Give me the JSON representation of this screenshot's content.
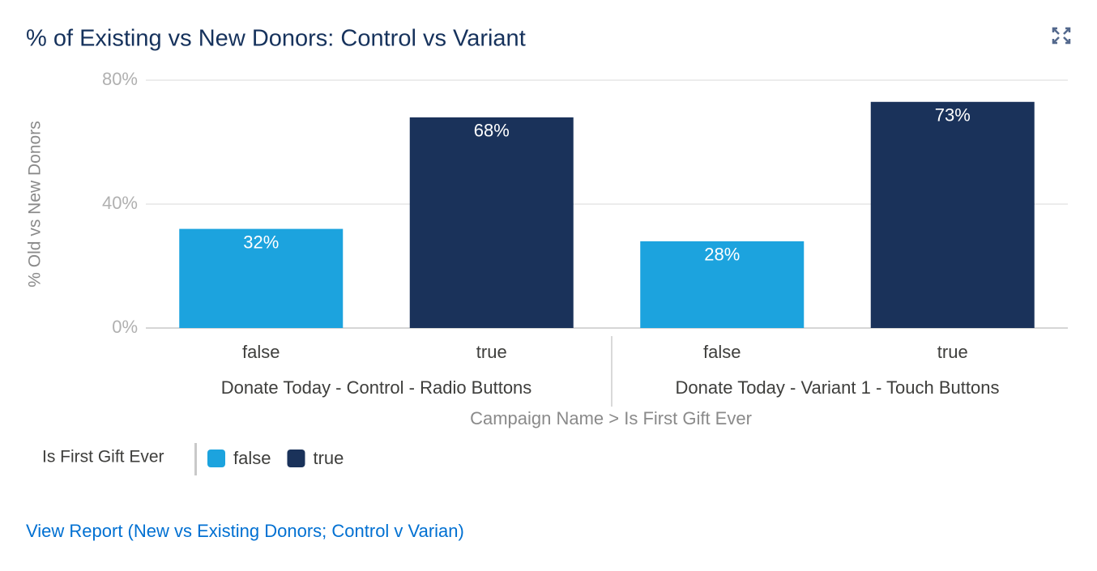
{
  "chart_data": {
    "type": "bar",
    "title": "% of Existing vs New Donors: Control vs Variant",
    "y_label": "% Old vs New Donors",
    "x_label": "Campaign Name > Is First Gift Ever",
    "categories": [
      "Donate Today - Control - Radio Buttons",
      "Donate Today - Variant 1 - Touch Buttons"
    ],
    "series": [
      {
        "name": "false",
        "color": "#1ca3de",
        "values": [
          32,
          28
        ],
        "value_labels": [
          "32%",
          "28%"
        ]
      },
      {
        "name": "true",
        "color": "#1a325a",
        "values": [
          68,
          73
        ],
        "value_labels": [
          "68%",
          "73%"
        ]
      }
    ],
    "ylim": [
      0,
      80
    ],
    "yticks": [
      {
        "value": 0,
        "label": "0%"
      },
      {
        "value": 40,
        "label": "40%"
      },
      {
        "value": 80,
        "label": "80%"
      }
    ],
    "grid": true,
    "legend_title": "Is First Gift Ever",
    "legend_position": "bottom-left",
    "link": "View Report (New vs Existing Donors; Control v Varian)"
  }
}
